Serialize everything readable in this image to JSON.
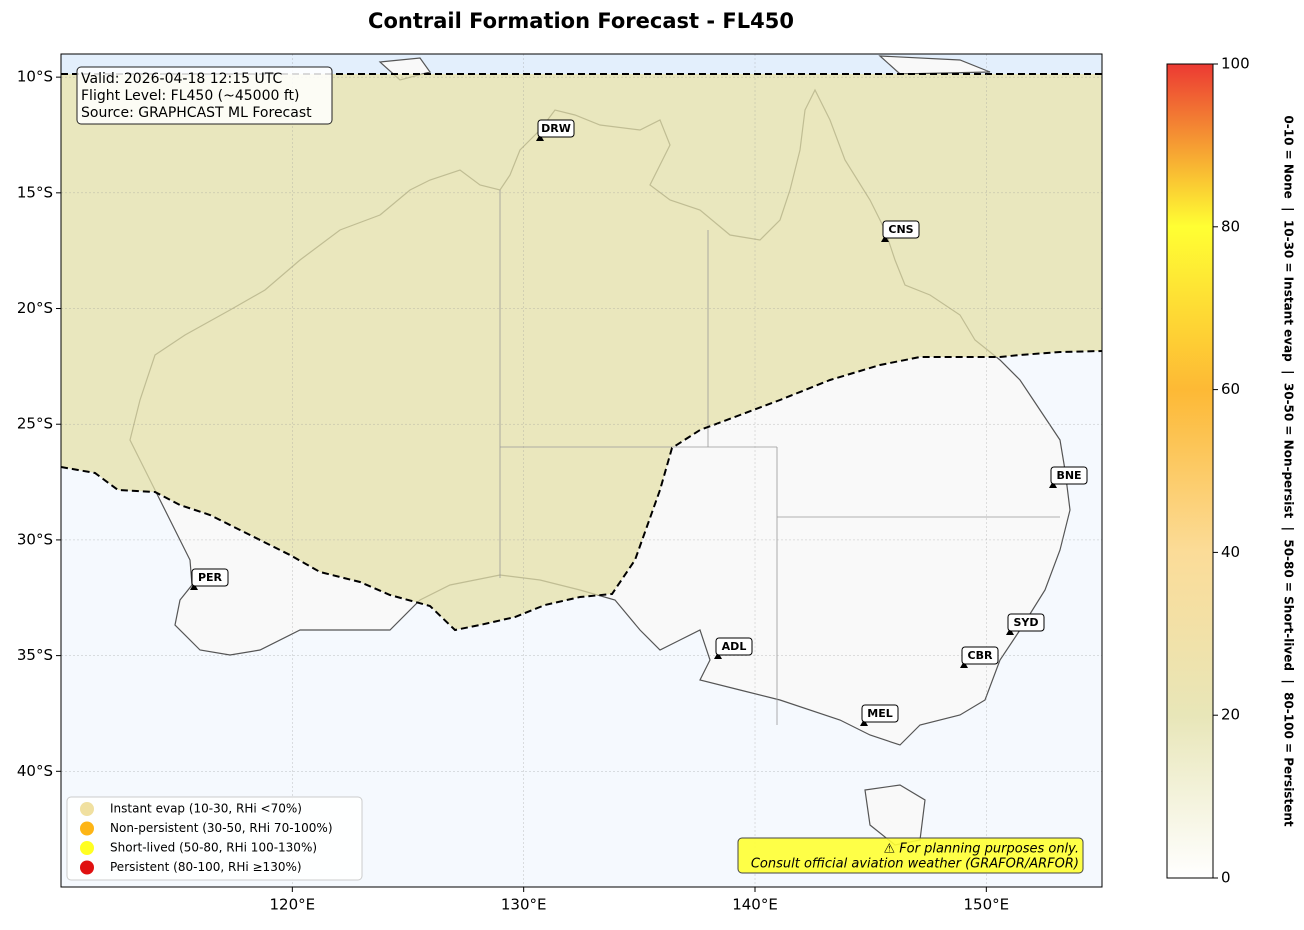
{
  "title": "Contrail Formation Forecast - FL450",
  "info": [
    "Valid: 2026-04-18 12:15 UTC",
    "Flight Level: FL450 (~45000 ft)",
    "Source: GRAPHCAST ML Forecast"
  ],
  "map": {
    "lon_range": [
      110,
      155
    ],
    "lat_range": [
      -45,
      -9
    ],
    "lon_ticks": [
      {
        "value": 120,
        "label": "120°E"
      },
      {
        "value": 130,
        "label": "130°E"
      },
      {
        "value": 140,
        "label": "140°E"
      },
      {
        "value": 150,
        "label": "150°E"
      }
    ],
    "lat_ticks": [
      {
        "value": -10,
        "label": "10°S"
      },
      {
        "value": -15,
        "label": "15°S"
      },
      {
        "value": -20,
        "label": "20°S"
      },
      {
        "value": -25,
        "label": "25°S"
      },
      {
        "value": -30,
        "label": "30°S"
      },
      {
        "value": -35,
        "label": "35°S"
      },
      {
        "value": -40,
        "label": "40°S"
      }
    ],
    "cities": [
      "DRW",
      "CNS",
      "BNE",
      "PER",
      "ADL",
      "SYD",
      "CBR",
      "MEL"
    ]
  },
  "legend": [
    {
      "label": "Instant evap (10-30, RHi <70%)",
      "color": "#f0e0a0"
    },
    {
      "label": "Non-persistent (30-50, RHi 70-100%)",
      "color": "#fdb515"
    },
    {
      "label": "Short-lived (50-80, RHi 100-130%)",
      "color": "#ffff22"
    },
    {
      "label": "Persistent (80-100, RHi ≥130%)",
      "color": "#e01010"
    }
  ],
  "warning": [
    "⚠ For planning purposes only.",
    "Consult official aviation weather (GRAFOR/ARFOR)"
  ],
  "colorbar": {
    "range": [
      0,
      100
    ],
    "ticks": [
      0,
      20,
      40,
      60,
      80,
      100
    ],
    "label": "0-10 = None  |  10-30 = Instant evap  |  30-50 = Non-persist  |  50-80 = Short-lived  |  80-100 = Persistent"
  }
}
